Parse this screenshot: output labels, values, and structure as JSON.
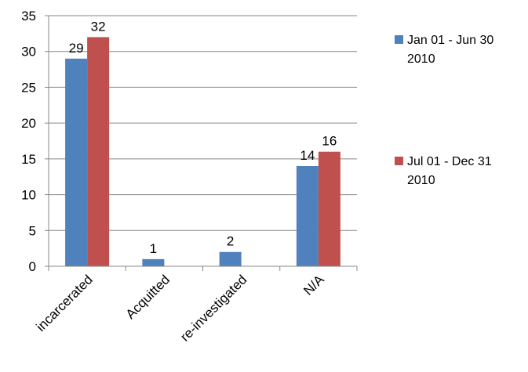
{
  "chart_data": {
    "type": "bar",
    "categories": [
      "incarcerated",
      "Acquitted",
      "re-investigated",
      "N/A"
    ],
    "series": [
      {
        "name": "Jan 01 - Jun 30 2010",
        "legend_lines": [
          "Jan 01 - Jun 30",
          "2010"
        ],
        "color": "#4F81BD",
        "values": [
          29,
          1,
          2,
          14
        ]
      },
      {
        "name": "Jul 01 - Dec 31 2010",
        "legend_lines": [
          "Jul 01 - Dec 31",
          "2010"
        ],
        "color": "#C0504D",
        "values": [
          32,
          0,
          0,
          16
        ]
      }
    ],
    "data_labels": [
      [
        "29",
        "1",
        "2",
        "14"
      ],
      [
        "32",
        "",
        "",
        "16"
      ]
    ],
    "ylim": [
      0,
      35
    ],
    "yticks": [
      0,
      5,
      10,
      15,
      20,
      25,
      30,
      35
    ],
    "grid": true,
    "legend": "right",
    "title": "",
    "xlabel": "",
    "ylabel": ""
  }
}
